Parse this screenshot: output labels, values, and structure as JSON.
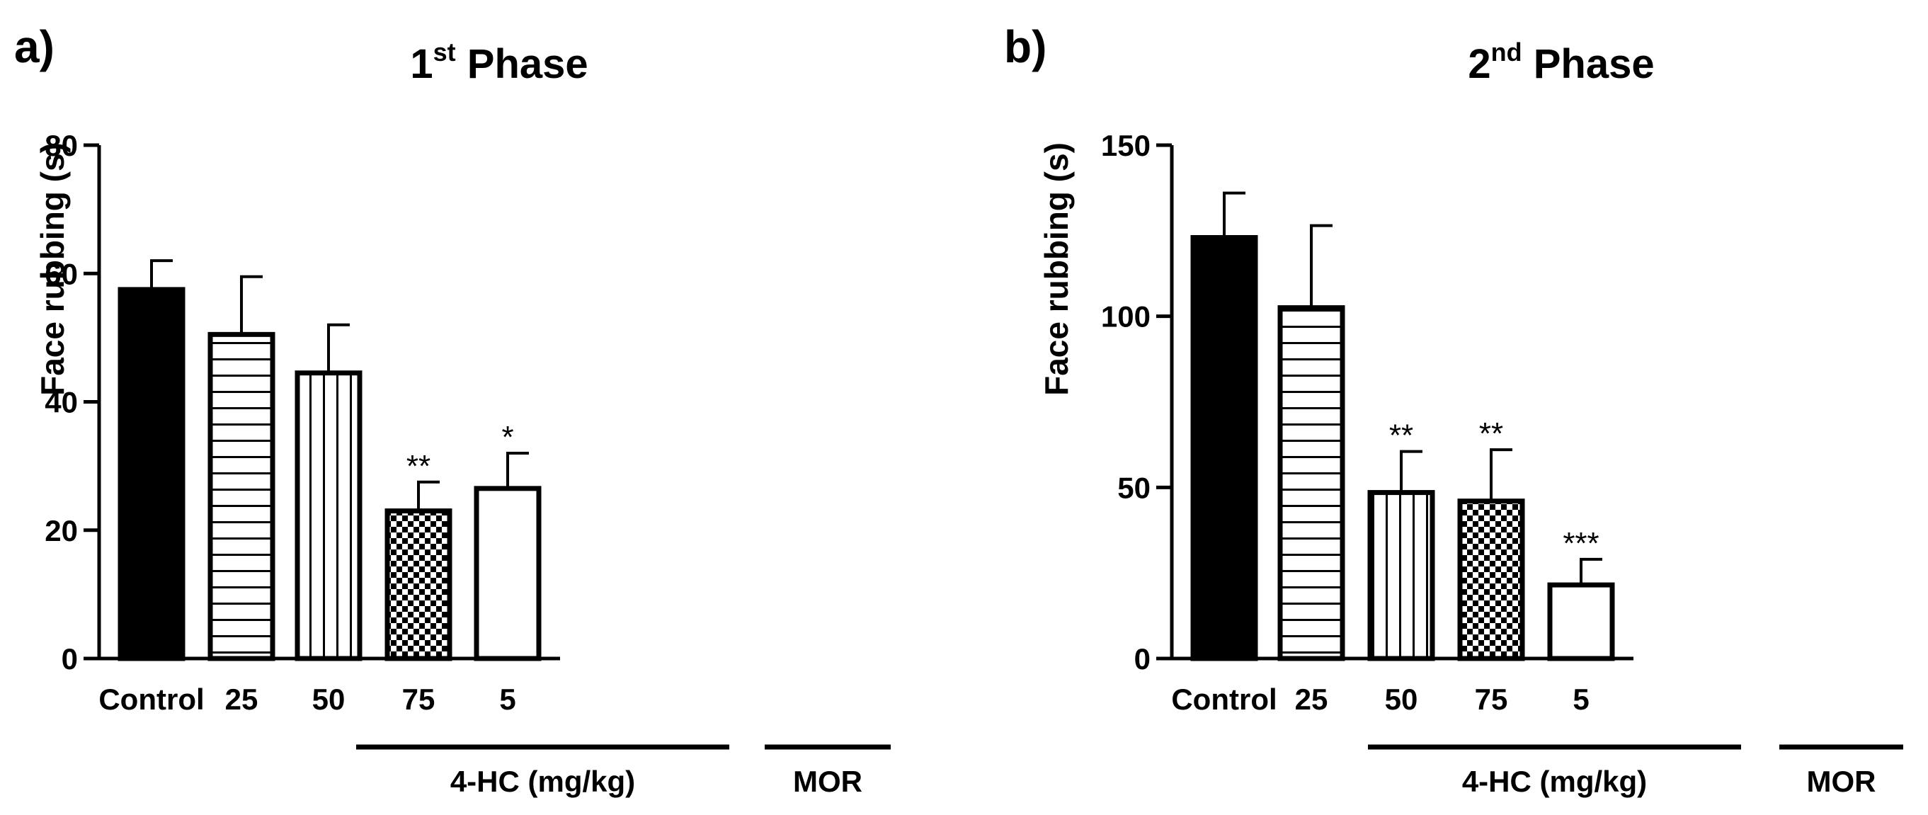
{
  "panels": [
    {
      "label": "a)",
      "title_main": "1",
      "title_sup": "st",
      "title_rest": " Phase",
      "chart_data": {
        "type": "bar",
        "categories": [
          "Control",
          "25",
          "50",
          "75",
          "5"
        ],
        "values": [
          57.5,
          50.5,
          44.5,
          23,
          26.5
        ],
        "errors": [
          4.5,
          9,
          7.5,
          4.5,
          5.5
        ],
        "significance": [
          "",
          "",
          "",
          "**",
          "*"
        ],
        "patterns": [
          "solid",
          "horizontal",
          "vertical",
          "checker",
          "empty"
        ],
        "ylabel": "Face rubbing (s)",
        "ylim": [
          0,
          80
        ],
        "yticks": [
          "0",
          "20",
          "40",
          "60",
          "80"
        ],
        "groups": [
          {
            "label": "4-HC (mg/kg)",
            "from": 1,
            "to": 3
          },
          {
            "label": "MOR",
            "from": 4,
            "to": 4
          }
        ]
      }
    },
    {
      "label": "b)",
      "title_main": "2",
      "title_sup": "nd",
      "title_rest": " Phase",
      "chart_data": {
        "type": "bar",
        "categories": [
          "Control",
          "25",
          "50",
          "75",
          "5"
        ],
        "values": [
          123,
          102.5,
          48.5,
          46,
          21.5
        ],
        "errors": [
          13,
          24,
          12,
          15,
          7.5
        ],
        "significance": [
          "",
          "",
          "**",
          "**",
          "***"
        ],
        "patterns": [
          "solid",
          "horizontal",
          "vertical",
          "checker",
          "empty"
        ],
        "ylabel": "Face rubbing (s)",
        "ylim": [
          0,
          150
        ],
        "yticks": [
          "0",
          "50",
          "100",
          "150"
        ],
        "groups": [
          {
            "label": "4-HC (mg/kg)",
            "from": 1,
            "to": 3
          },
          {
            "label": "MOR",
            "from": 4,
            "to": 4
          }
        ]
      }
    }
  ]
}
